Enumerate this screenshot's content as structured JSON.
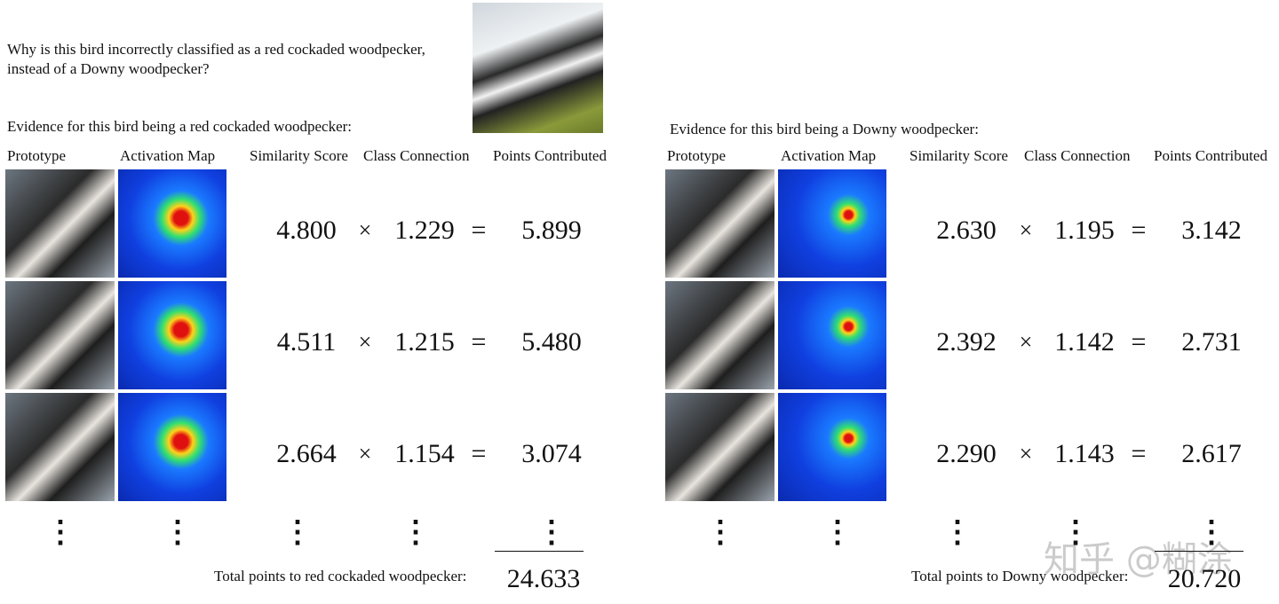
{
  "question": [
    "Why is this bird incorrectly classified as a red cockaded woodpecker,",
    "instead of a Downy woodpecker?"
  ],
  "headers": [
    "Prototype",
    "Activation Map",
    "Similarity Score",
    "Class Connection",
    "Points Contributed"
  ],
  "operators": {
    "times": "×",
    "equals": "="
  },
  "ellipsis": "⋮",
  "panels": [
    {
      "heading": "Evidence for this bird being a red cockaded woodpecker:",
      "rows": [
        [
          "4.800",
          "1.229",
          "5.899"
        ],
        [
          "4.511",
          "1.215",
          "5.480"
        ],
        [
          "2.664",
          "1.154",
          "3.074"
        ]
      ],
      "total_label": "Total points to red cockaded woodpecker:",
      "total": "24.633"
    },
    {
      "heading": "Evidence for this bird being a Downy woodpecker:",
      "rows": [
        [
          "2.630",
          "1.195",
          "3.142"
        ],
        [
          "2.392",
          "1.142",
          "2.731"
        ],
        [
          "2.290",
          "1.143",
          "2.617"
        ]
      ],
      "total_label": "Total points to Downy woodpecker:",
      "total": "20.720"
    }
  ],
  "watermark": "知乎 @糊涂"
}
